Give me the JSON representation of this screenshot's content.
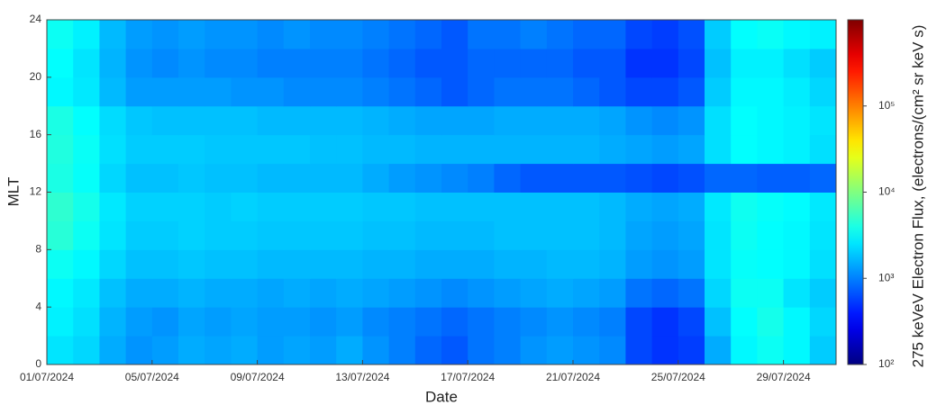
{
  "chart_data": {
    "type": "heatmap",
    "xlabel": "Date",
    "ylabel": "MLT",
    "colorbar_label": "275 keVeV Electron Flux, (electrons/(cm² sr keV s)",
    "colormap": "jet",
    "color_scale": "log",
    "x": [
      "01/07/2024",
      null,
      null,
      null,
      "05/07/2024",
      null,
      null,
      null,
      "09/07/2024",
      null,
      null,
      null,
      "13/07/2024",
      null,
      null,
      null,
      "17/07/2024",
      null,
      null,
      null,
      "21/07/2024",
      null,
      null,
      null,
      "25/07/2024",
      null,
      null,
      null,
      "29/07/2024",
      null
    ],
    "ylim": [
      0,
      24
    ],
    "yticks": [
      0,
      4,
      8,
      12,
      16,
      20,
      24
    ],
    "clim": [
      100,
      1000000
    ],
    "cticks": [
      {
        "value": 100,
        "label": "10²"
      },
      {
        "value": 1000,
        "label": "10³"
      },
      {
        "value": 10000,
        "label": "10⁴"
      },
      {
        "value": 100000,
        "label": "10⁵"
      }
    ],
    "z": [
      [
        2500,
        2200,
        1500,
        1200,
        1300,
        1500,
        1400,
        1500,
        1300,
        1400,
        1300,
        1500,
        1200,
        1000,
        800,
        700,
        900,
        1000,
        1200,
        1300,
        1200,
        1100,
        600,
        500,
        550,
        1500,
        3000,
        3500,
        3000,
        2000
      ],
      [
        2800,
        2400,
        1600,
        1300,
        1200,
        1400,
        1300,
        1400,
        1300,
        1300,
        1200,
        1300,
        1100,
        1000,
        900,
        800,
        900,
        1000,
        1100,
        1200,
        1100,
        1000,
        600,
        500,
        600,
        1800,
        3200,
        3800,
        3000,
        2200
      ],
      [
        3000,
        2600,
        1800,
        1500,
        1500,
        1600,
        1500,
        1500,
        1400,
        1500,
        1400,
        1500,
        1400,
        1300,
        1200,
        1100,
        1200,
        1300,
        1400,
        1500,
        1400,
        1300,
        900,
        800,
        900,
        2200,
        3500,
        3500,
        2500,
        2000
      ],
      [
        3500,
        3000,
        2200,
        1800,
        1800,
        1900,
        1800,
        1800,
        1700,
        1700,
        1700,
        1700,
        1600,
        1600,
        1500,
        1500,
        1500,
        1600,
        1600,
        1700,
        1700,
        1600,
        1300,
        1200,
        1300,
        2500,
        3300,
        3200,
        3000,
        2400
      ],
      [
        4500,
        3500,
        2500,
        2000,
        2000,
        2100,
        2000,
        2000,
        1900,
        1900,
        1900,
        1900,
        1800,
        1800,
        1700,
        1700,
        1700,
        1800,
        1800,
        1800,
        1800,
        1700,
        1400,
        1300,
        1400,
        2500,
        3500,
        3200,
        3000,
        2500
      ],
      [
        4800,
        3800,
        2600,
        2100,
        2100,
        2100,
        2000,
        2100,
        2000,
        2000,
        2000,
        2000,
        1900,
        1900,
        1800,
        1800,
        1800,
        1800,
        1800,
        1800,
        1800,
        1700,
        1500,
        1400,
        1500,
        2600,
        3600,
        3300,
        3100,
        2600
      ],
      [
        4000,
        3300,
        2200,
        1800,
        1800,
        1900,
        1800,
        1800,
        1700,
        1700,
        1700,
        1700,
        1500,
        1300,
        1200,
        1100,
        1000,
        800,
        700,
        700,
        700,
        700,
        650,
        600,
        650,
        800,
        800,
        750,
        750,
        800
      ],
      [
        4200,
        3400,
        2400,
        2000,
        2000,
        2000,
        1900,
        1900,
        1900,
        1900,
        1800,
        1800,
        1700,
        1700,
        1600,
        1600,
        1600,
        1600,
        1600,
        1600,
        1600,
        1500,
        1400,
        1300,
        1400,
        2400,
        3200,
        3000,
        2800,
        2400
      ],
      [
        4000,
        3200,
        2300,
        1900,
        1800,
        1800,
        1800,
        1800,
        1700,
        1700,
        1700,
        1700,
        1600,
        1500,
        1400,
        1400,
        1400,
        1500,
        1500,
        1500,
        1500,
        1400,
        1200,
        1100,
        1200,
        2400,
        3200,
        3000,
        2800,
        2500
      ],
      [
        3000,
        2600,
        1700,
        1300,
        1300,
        1300,
        1300,
        1200,
        1200,
        1100,
        1100,
        1100,
        1000,
        900,
        800,
        700,
        800,
        900,
        900,
        900,
        800,
        700,
        600,
        600,
        700,
        2000,
        3000,
        3000,
        2700,
        2200
      ],
      [
        3200,
        2500,
        1600,
        1200,
        1100,
        1200,
        1100,
        1100,
        1000,
        1000,
        1000,
        1000,
        900,
        800,
        700,
        700,
        800,
        800,
        800,
        800,
        700,
        700,
        500,
        500,
        600,
        1800,
        2800,
        2800,
        2400,
        2000
      ],
      [
        3500,
        2800,
        1700,
        1300,
        1200,
        1300,
        1200,
        1200,
        1100,
        1200,
        1100,
        1100,
        1000,
        900,
        800,
        700,
        900,
        900,
        1000,
        900,
        800,
        800,
        600,
        550,
        650,
        2000,
        3200,
        3400,
        3000,
        2800
      ]
    ]
  }
}
